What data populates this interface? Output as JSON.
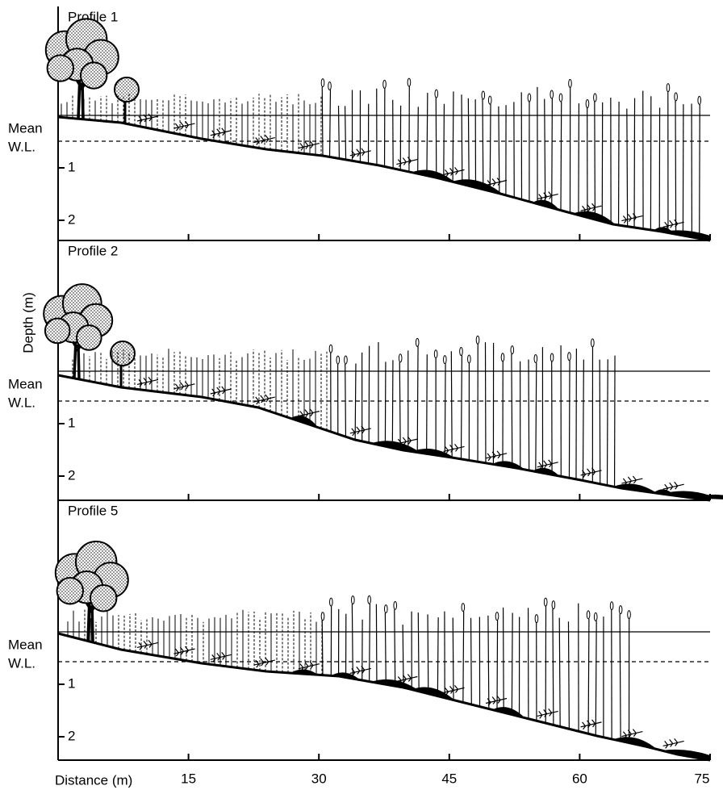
{
  "y_axis_label": "Depth (m)",
  "x_axis": {
    "label": "Distance (m)",
    "ticks": [
      15,
      30,
      45,
      60,
      75
    ]
  },
  "panels": [
    {
      "title": "Profile  1",
      "mean_label": "Mean",
      "wl_label": "W.L.",
      "depth_ticks": [
        1,
        2
      ]
    },
    {
      "title": "Profile 2",
      "mean_label": "Mean",
      "wl_label": "W.L.",
      "depth_ticks": [
        1,
        2
      ]
    },
    {
      "title": "Profile 5",
      "mean_label": "Mean",
      "wl_label": "W.L.",
      "depth_ticks": [
        1,
        2
      ]
    }
  ]
}
